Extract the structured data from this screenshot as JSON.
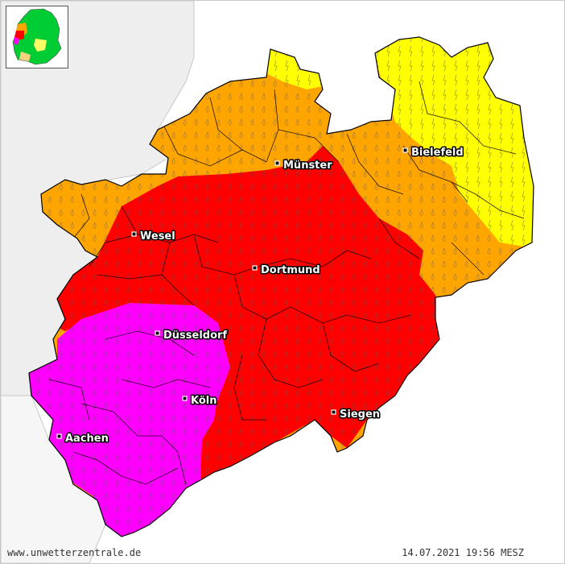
{
  "footer": {
    "site": "www.unwetterzentrale.de",
    "timestamp": "14.07.2021 19:56 MESZ"
  },
  "colors": {
    "level_yellow": "#ffff00",
    "level_orange": "#ffa500",
    "level_red": "#ff0000",
    "level_violet": "#ff00ff",
    "neighbor_land": "#eeeeee",
    "background": "#ffffff"
  },
  "warning_levels": [
    {
      "color": "#ffff00",
      "symbol": "lightning-icon"
    },
    {
      "color": "#ffa500",
      "symbol": "raindrop-icon"
    },
    {
      "color": "#ff0000",
      "symbol": "raindrop-icon"
    },
    {
      "color": "#ff00ff",
      "symbol": "raindrop-icon"
    }
  ],
  "cities": [
    {
      "name": "Münster"
    },
    {
      "name": "Bielefeld"
    },
    {
      "name": "Wesel"
    },
    {
      "name": "Dortmund"
    },
    {
      "name": "Düsseldorf"
    },
    {
      "name": "Köln"
    },
    {
      "name": "Aachen"
    },
    {
      "name": "Siegen"
    }
  ]
}
